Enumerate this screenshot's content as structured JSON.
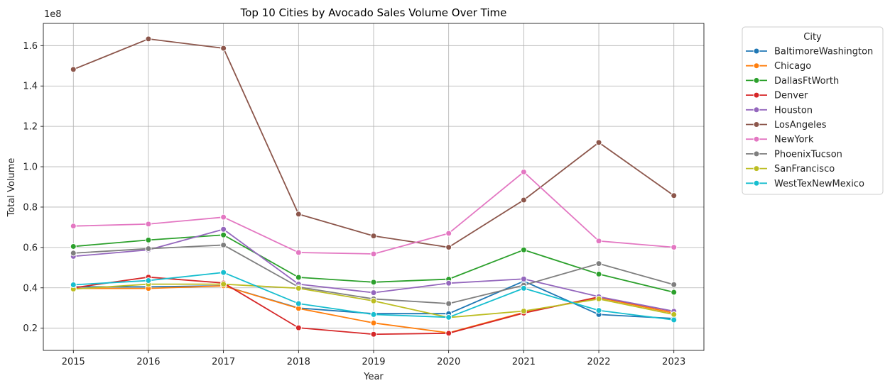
{
  "chart_data": {
    "type": "line",
    "title": "Top 10 Cities by Avocado Sales Volume Over Time",
    "xlabel": "Year",
    "ylabel": "Total Volume",
    "y_offset_label": "1e8",
    "x": [
      2015,
      2016,
      2017,
      2018,
      2019,
      2020,
      2021,
      2022,
      2023
    ],
    "xlim": [
      2014.6,
      2023.4
    ],
    "ylim": [
      9000000.0,
      171000000.0
    ],
    "yticks": [
      20000000.0,
      40000000.0,
      60000000.0,
      80000000.0,
      100000000.0,
      120000000.0,
      140000000.0,
      160000000.0
    ],
    "ytick_labels": [
      "0.2",
      "0.4",
      "0.6",
      "0.8",
      "1.0",
      "1.2",
      "1.4",
      "1.6"
    ],
    "grid": true,
    "legend_title": "City",
    "legend_position": "outside-right",
    "series": [
      {
        "name": "BaltimoreWashington",
        "color": "#1f77b4",
        "values": [
          40500000.0,
          40500000.0,
          41000000.0,
          30000000.0,
          27200000.0,
          27200000.0,
          43300000.0,
          26800000.0,
          24800000.0
        ]
      },
      {
        "name": "Chicago",
        "color": "#ff7f0e",
        "values": [
          39700000.0,
          39700000.0,
          41000000.0,
          29800000.0,
          22600000.0,
          17700000.0,
          27800000.0,
          35200000.0,
          27500000.0
        ]
      },
      {
        "name": "DallasFtWorth",
        "color": "#2ca02c",
        "values": [
          60500000.0,
          63700000.0,
          66200000.0,
          45200000.0,
          42800000.0,
          44300000.0,
          58800000.0,
          46800000.0,
          37800000.0
        ]
      },
      {
        "name": "Denver",
        "color": "#d62728",
        "values": [
          40000000.0,
          45300000.0,
          42400000.0,
          20200000.0,
          17000000.0,
          17500000.0,
          27500000.0,
          35500000.0,
          28300000.0
        ]
      },
      {
        "name": "Houston",
        "color": "#9467bd",
        "values": [
          55600000.0,
          58800000.0,
          69000000.0,
          41800000.0,
          37600000.0,
          42300000.0,
          44400000.0,
          35600000.0,
          28400000.0
        ]
      },
      {
        "name": "LosAngeles",
        "color": "#8c564b",
        "values": [
          148200000.0,
          163300000.0,
          158700000.0,
          76500000.0,
          65700000.0,
          60100000.0,
          83500000.0,
          112000000.0,
          85700000.0
        ]
      },
      {
        "name": "NewYork",
        "color": "#e377c2",
        "values": [
          70600000.0,
          71600000.0,
          75000000.0,
          57500000.0,
          56800000.0,
          67000000.0,
          97400000.0,
          63200000.0,
          60100000.0
        ]
      },
      {
        "name": "PhoenixTucson",
        "color": "#7f7f7f",
        "values": [
          57200000.0,
          59400000.0,
          61200000.0,
          40400000.0,
          34500000.0,
          32200000.0,
          41300000.0,
          52000000.0,
          41600000.0
        ]
      },
      {
        "name": "SanFrancisco",
        "color": "#bcbd22",
        "values": [
          39400000.0,
          41800000.0,
          41800000.0,
          39800000.0,
          33500000.0,
          25300000.0,
          28500000.0,
          34500000.0,
          26800000.0
        ]
      },
      {
        "name": "WestTexNewMexico",
        "color": "#17becf",
        "values": [
          41500000.0,
          43600000.0,
          47600000.0,
          32200000.0,
          26800000.0,
          25400000.0,
          39800000.0,
          28800000.0,
          24100000.0
        ]
      }
    ]
  }
}
